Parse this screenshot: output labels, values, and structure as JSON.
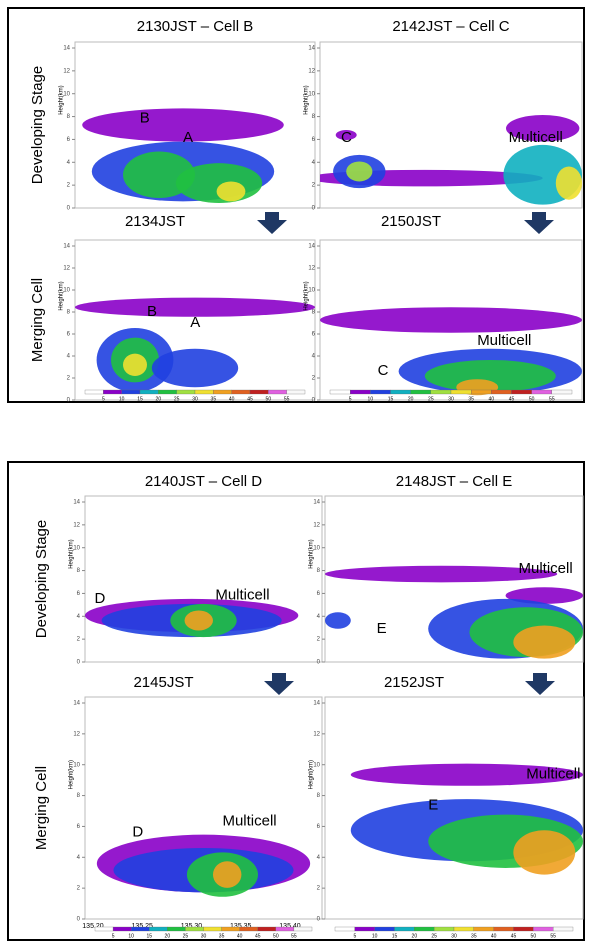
{
  "figures": [
    {
      "row_labels": [
        "Developing Stage",
        "Merging Cell"
      ],
      "panels": [
        {
          "title": "2130JST – Cell B",
          "y_axis_label": "Height(km)",
          "annotations": [
            "B",
            "A"
          ]
        },
        {
          "title": "2142JST – Cell C",
          "y_axis_label": "Height(km)",
          "annotations": [
            "C",
            "Multicell"
          ]
        },
        {
          "title": "2134JST",
          "y_axis_label": "Height(km)",
          "annotations": [
            "B",
            "A"
          ]
        },
        {
          "title": "2150JST",
          "y_axis_label": "Height(km)",
          "annotations": [
            "Multicell",
            "C"
          ]
        }
      ],
      "y_ticks": [
        0,
        2,
        4,
        6,
        8,
        10,
        12,
        14
      ],
      "colorbar_ticks": [
        5,
        10,
        15,
        20,
        25,
        30,
        35,
        40,
        45,
        50,
        55
      ]
    },
    {
      "row_labels": [
        "Developing Stage",
        "Merging Cell"
      ],
      "panels": [
        {
          "title": "2140JST – Cell D",
          "y_axis_label": "Height(km)",
          "annotations": [
            "D",
            "Multicell"
          ]
        },
        {
          "title": "2148JST – Cell E",
          "y_axis_label": "Height(km)",
          "annotations": [
            "Multicell",
            "E"
          ]
        },
        {
          "title": "2145JST",
          "y_axis_label": "Height(km)",
          "annotations": [
            "Multicell",
            "D"
          ],
          "x_ticks": [
            "135.20",
            "135.25",
            "135.30",
            "135.35",
            "135.40"
          ]
        },
        {
          "title": "2152JST",
          "y_axis_label": "Height(km)",
          "annotations": [
            "Multicell",
            "E"
          ]
        }
      ],
      "y_ticks": [
        0,
        2,
        4,
        6,
        8,
        10,
        12,
        14
      ],
      "colorbar_ticks": [
        5,
        10,
        15,
        20,
        25,
        30,
        35,
        40,
        45,
        50,
        55
      ]
    }
  ]
}
